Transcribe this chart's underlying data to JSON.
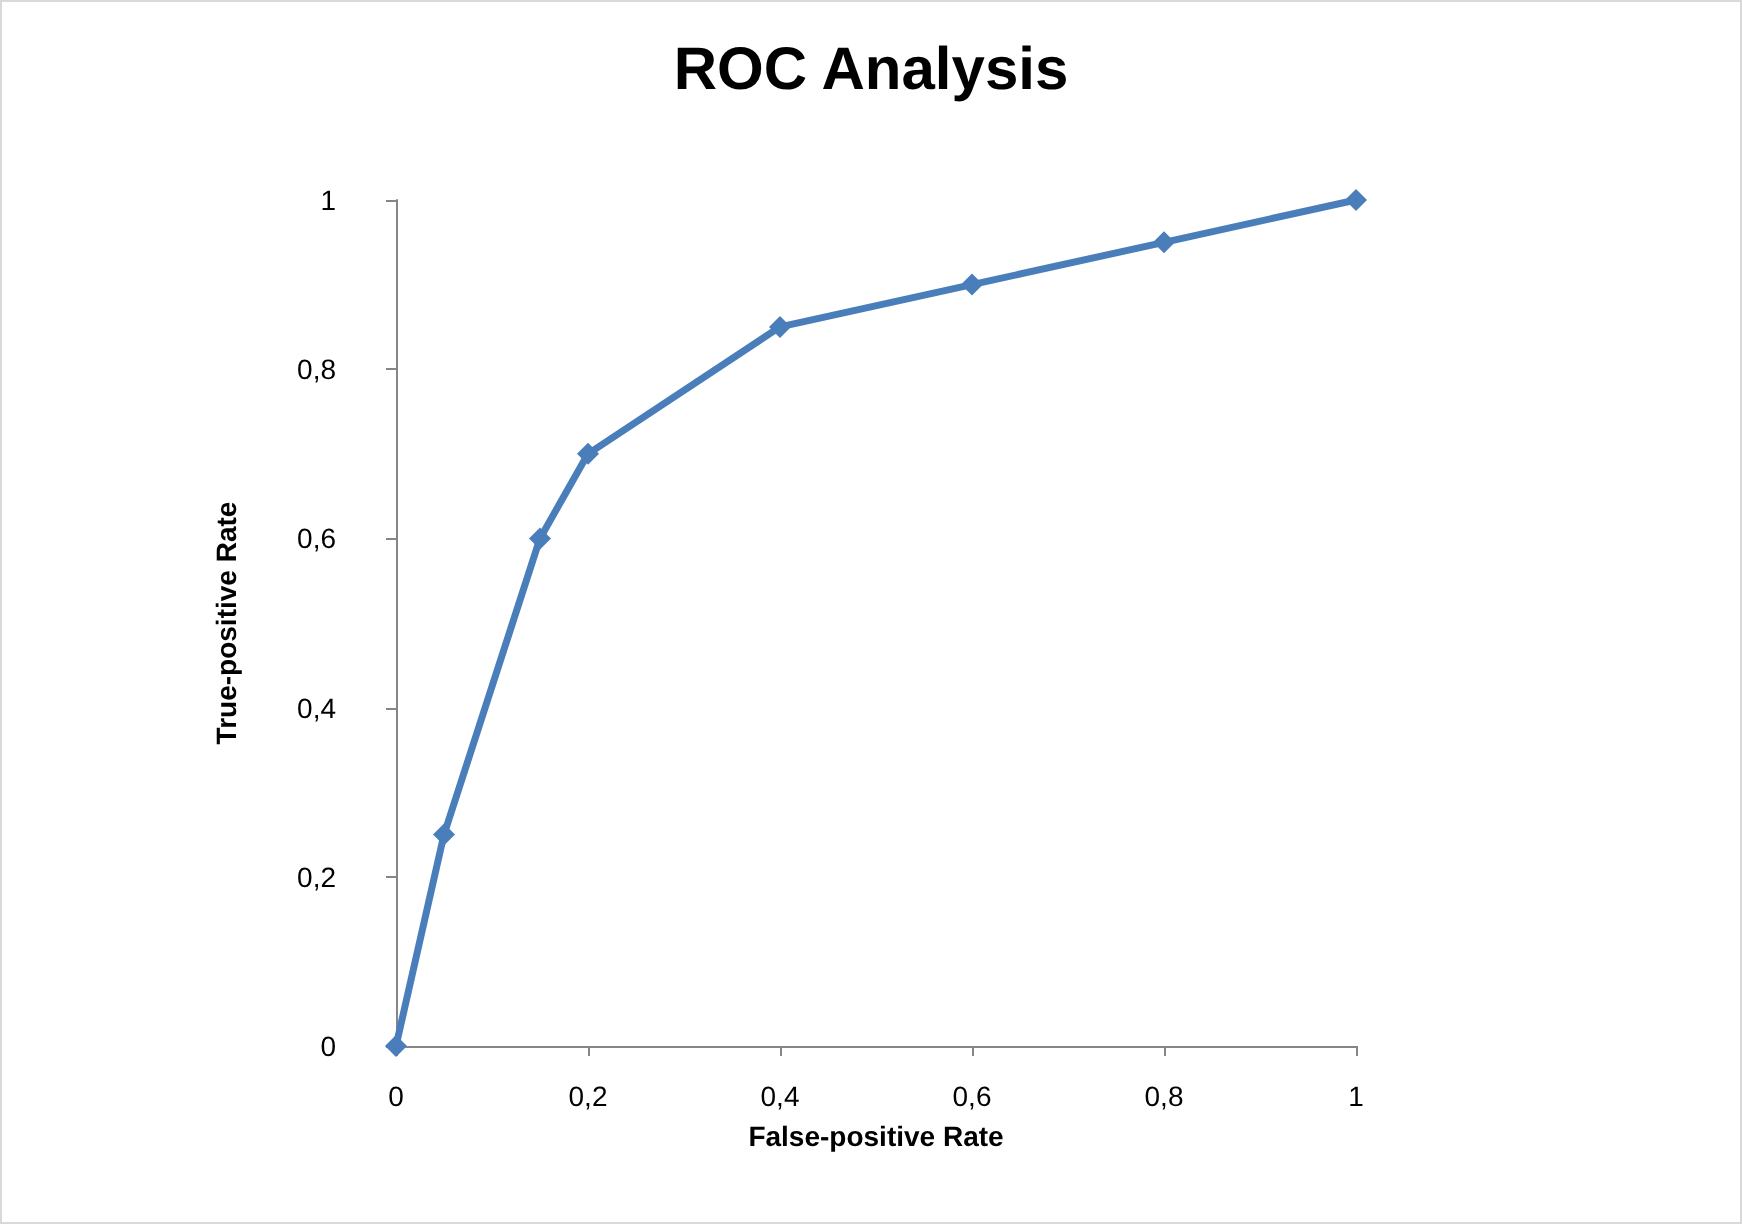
{
  "chart_data": {
    "type": "line",
    "title": "ROC Analysis",
    "xlabel": "False-positive Rate",
    "ylabel": "True-positive Rate",
    "x": [
      0,
      0.05,
      0.15,
      0.2,
      0.4,
      0.6,
      0.8,
      1
    ],
    "series": [
      {
        "color": "#4a7ebb",
        "values": [
          0,
          0.25,
          0.6,
          0.7,
          0.85,
          0.9,
          0.95,
          1
        ]
      }
    ],
    "xlim": [
      0,
      1
    ],
    "ylim": [
      0,
      1
    ],
    "xticks": [
      0,
      {
        "value": 0.2,
        "label": "0,2"
      },
      {
        "value": 0.4,
        "label": "0,4"
      },
      {
        "value": 0.6,
        "label": "0,6"
      },
      {
        "value": 0.8,
        "label": "0,8"
      },
      1
    ],
    "yticks": [
      0,
      {
        "value": 0.2,
        "label": "0,2"
      },
      {
        "value": 0.4,
        "label": "0,4"
      },
      {
        "value": 0.6,
        "label": "0,6"
      },
      {
        "value": 0.8,
        "label": "0,8"
      },
      1
    ],
    "grid": false,
    "marker": "diamond",
    "line_style": "solid"
  }
}
